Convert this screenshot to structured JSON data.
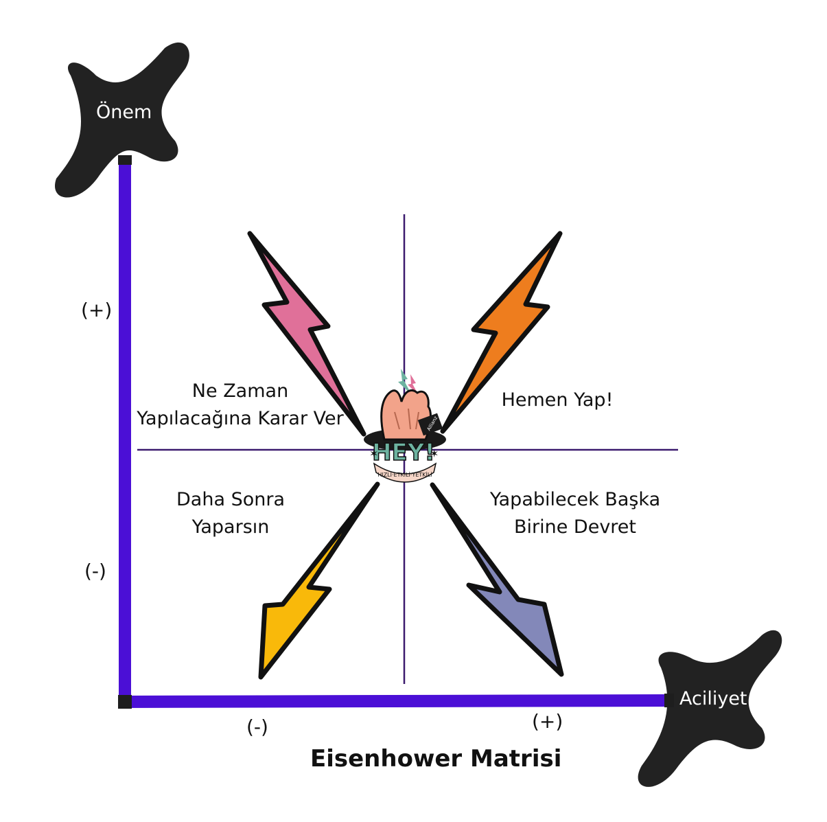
{
  "axes": {
    "y_label": "Önem",
    "x_label": "Aciliyet",
    "y_plus": "(+)",
    "y_minus": "(-)",
    "x_minus": "(-)",
    "x_plus": "(+)"
  },
  "quadrants": {
    "top_left": [
      "Ne Zaman",
      "Yapılacağına Karar Ver"
    ],
    "top_right": [
      "Hemen Yap!"
    ],
    "bottom_left": [
      "Daha Sonra",
      "Yaparsın"
    ],
    "bottom_right": [
      "Yapabilecek Başka",
      "Birine Devret"
    ]
  },
  "logo": {
    "text": "HEY!",
    "subtext": "HIZLI·ETKİLİ·YETKİLİ",
    "badge": "Allianz"
  },
  "title": "Eisenhower Matrisi",
  "colors": {
    "axis": "#4b0fd6",
    "divider": "#3b1a6e",
    "star": "#222222",
    "bolt_pink": "#e07099",
    "bolt_orange": "#ee7d1e",
    "bolt_yellow": "#f9b90a",
    "bolt_blue": "#8388b9"
  }
}
